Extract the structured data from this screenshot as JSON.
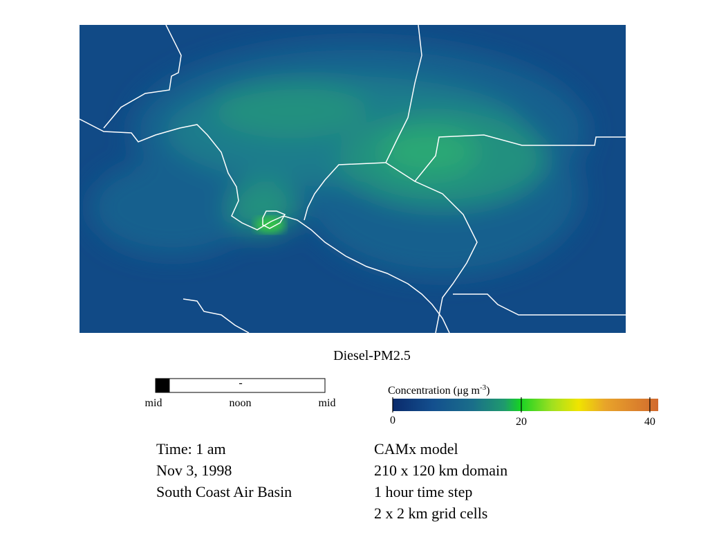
{
  "title": "Diesel-PM2.5",
  "time_bar": {
    "marker": "-",
    "labels": [
      "mid",
      "noon",
      "mid"
    ],
    "range_hours": [
      0,
      24
    ],
    "progress_hours": 2
  },
  "colorbar": {
    "label_parts": [
      "Concentration (μg m",
      "-3",
      ")"
    ],
    "lim": [
      0,
      41.3
    ],
    "ticks": [
      0,
      20,
      40
    ]
  },
  "info_left": [
    "Time: 1 am",
    "Nov 3, 1998",
    "South Coast Air Basin"
  ],
  "info_right": [
    "CAMx model",
    "210 x 120 km domain",
    "1 hour time step",
    "2 x 2 km grid cells"
  ]
}
